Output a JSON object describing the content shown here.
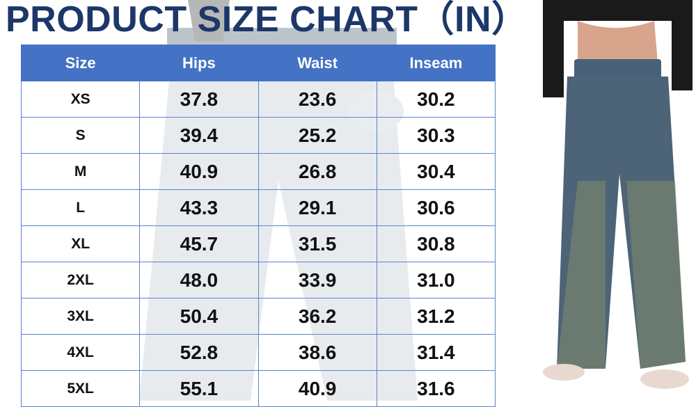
{
  "title": "PRODUCT SIZE CHART（IN）",
  "table": {
    "headers": [
      "Size",
      "Hips",
      "Waist",
      "Inseam"
    ],
    "rows": [
      [
        "XS",
        "37.8",
        "23.6",
        "30.2"
      ],
      [
        "S",
        "39.4",
        "25.2",
        "30.3"
      ],
      [
        "M",
        "40.9",
        "26.8",
        "30.4"
      ],
      [
        "L",
        "43.3",
        "29.1",
        "30.6"
      ],
      [
        "XL",
        "45.7",
        "31.5",
        "30.8"
      ],
      [
        "2XL",
        "48.0",
        "33.9",
        "31.0"
      ],
      [
        "3XL",
        "50.4",
        "36.2",
        "31.2"
      ],
      [
        "4XL",
        "52.8",
        "38.6",
        "31.4"
      ],
      [
        "5XL",
        "55.1",
        "40.9",
        "31.6"
      ]
    ]
  },
  "colors": {
    "title": "#1c3768",
    "header": "#4472c4",
    "border": "#5b83cc",
    "denim": "#4a6074"
  }
}
